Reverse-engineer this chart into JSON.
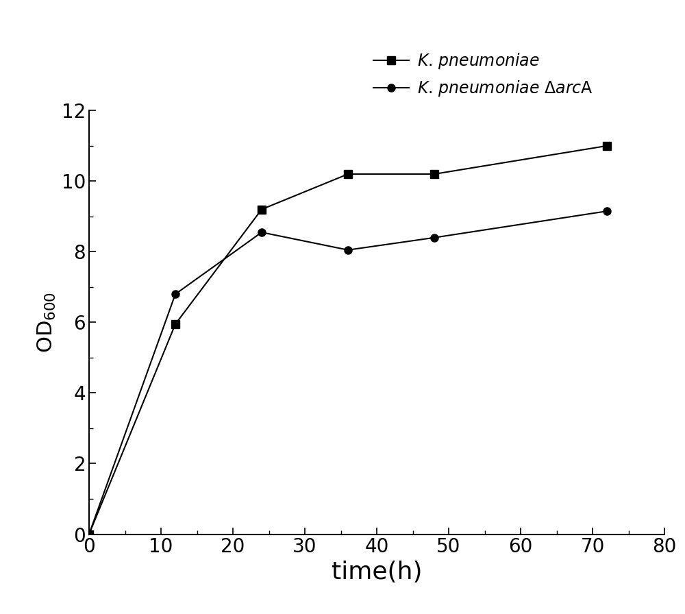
{
  "series1_x": [
    0,
    12,
    24,
    36,
    48,
    72
  ],
  "series1_y": [
    0,
    5.95,
    9.2,
    10.2,
    10.2,
    11.0
  ],
  "series2_x": [
    0,
    12,
    24,
    36,
    48,
    72
  ],
  "series2_y": [
    0,
    6.8,
    8.55,
    8.05,
    8.4,
    9.15
  ],
  "series1_color": "#000000",
  "series2_color": "#000000",
  "series1_marker": "s",
  "series2_marker": "o",
  "series1_markersize": 8,
  "series2_markersize": 8,
  "xlabel": "time(h)",
  "ylabel": "OD",
  "xlim": [
    0,
    80
  ],
  "ylim": [
    0,
    12
  ],
  "xticks": [
    0,
    10,
    20,
    30,
    40,
    50,
    60,
    70,
    80
  ],
  "yticks": [
    0,
    2,
    4,
    6,
    8,
    10,
    12
  ],
  "xlabel_fontsize": 26,
  "ylabel_fontsize": 22,
  "tick_fontsize": 20,
  "legend_fontsize": 17,
  "linewidth": 1.5,
  "background_color": "#ffffff"
}
